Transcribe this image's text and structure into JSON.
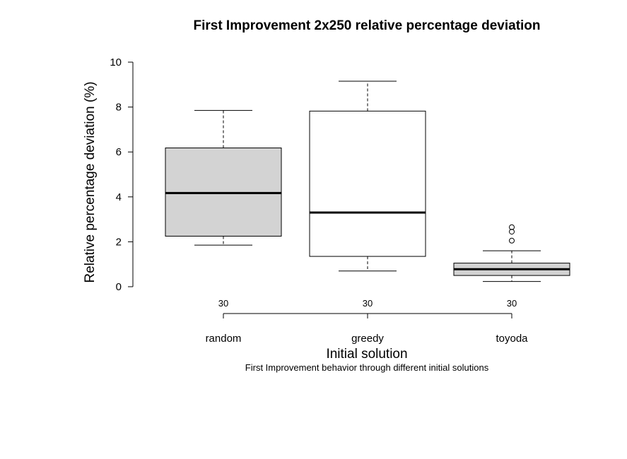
{
  "chart_data": {
    "type": "boxplot",
    "title": "First Improvement 2x250 relative percentage deviation",
    "xlabel": "Initial solution",
    "ylabel": "Relative percentage deviation (%)",
    "subtitle": "First Improvement behavior through different initial solutions",
    "ylim": [
      0,
      10
    ],
    "y_ticks": [
      "0",
      "2",
      "4",
      "6",
      "8",
      "10"
    ],
    "categories": [
      "random",
      "greedy",
      "toyoda"
    ],
    "counts": [
      "30",
      "30",
      "30"
    ],
    "boxes": [
      {
        "name": "random",
        "whisker_low": 1.85,
        "q1": 2.25,
        "median": 4.17,
        "q3": 6.18,
        "whisker_high": 7.85,
        "outliers": [],
        "fill": "#d3d3d3"
      },
      {
        "name": "greedy",
        "whisker_low": 0.7,
        "q1": 1.35,
        "median": 3.3,
        "q3": 7.82,
        "whisker_high": 9.15,
        "outliers": [],
        "fill": "#ffffff"
      },
      {
        "name": "toyoda",
        "whisker_low": 0.23,
        "q1": 0.5,
        "median": 0.78,
        "q3": 1.05,
        "whisker_high": 1.6,
        "outliers": [
          2.05,
          2.45,
          2.65
        ],
        "fill": "#d3d3d3"
      }
    ],
    "grid": false
  }
}
